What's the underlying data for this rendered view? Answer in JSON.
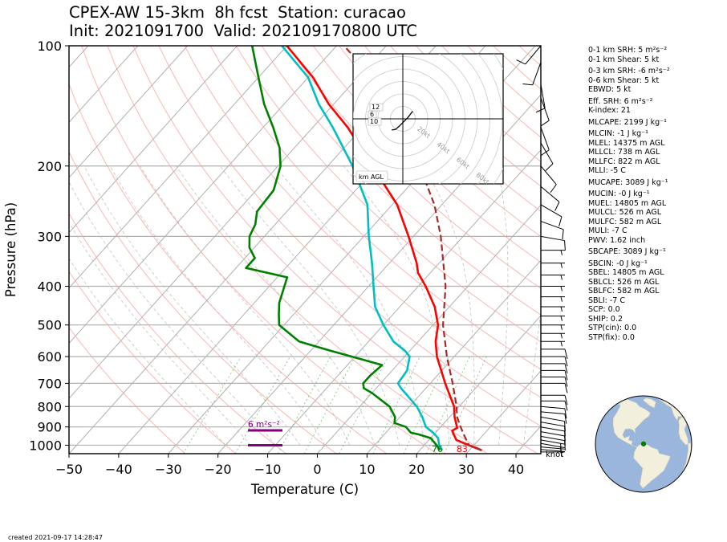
{
  "header": {
    "title_line1": "CPEX-AW 15-3km  8h fcst  Station: curacao",
    "title_line2": "Init: 2021091700  Valid: 202109170800 UTC"
  },
  "footer": {
    "created": "created 2021-09-17 14:28:47"
  },
  "stats": [
    "0-1 km SRH: 5 m²s⁻²",
    "0-1 km Shear: 5 kt",
    "0-3 km SRH: -6 m²s⁻²",
    "0-6 km Shear: 5 kt",
    "EBWD: 5 kt",
    "Eff. SRH: 6 m²s⁻²",
    "K-index: 21",
    "MLCAPE: 2199 J kg⁻¹",
    "MLCIN: -1 J kg⁻¹",
    "MLEL: 14375 m AGL",
    "MLLCL: 738 m AGL",
    "MLLFC: 822 m AGL",
    "MLLI: -5 C",
    "MUCAPE: 3089 J kg⁻¹",
    "MUCIN: -0 J kg⁻¹",
    "MUEL: 14805 m AGL",
    "MULCL: 526 m AGL",
    "MULFC: 582 m AGL",
    "MULI: -7 C",
    "PWV: 1.62 inch",
    "SBCAPE: 3089 J kg⁻¹",
    "SBCIN: -0 J kg⁻¹",
    "SBEL: 14805 m AGL",
    "SBLCL: 526 m AGL",
    "SBLFC: 582 m AGL",
    "SBLI: -7 C",
    "SCP: 0.0",
    "SHIP: 0.2",
    "STP(cin): 0.0",
    "STP(fix): 0.0"
  ],
  "stats_gap_before": [
    2,
    5,
    7,
    8,
    13,
    14,
    20,
    21
  ],
  "chart_data": {
    "type": "line",
    "xlabel": "Temperature (C)",
    "ylabel": "Pressure (hPa)",
    "xlim": [
      -50,
      45
    ],
    "ylim": [
      1050,
      100
    ],
    "xticks": [
      -50,
      -40,
      -30,
      -20,
      -10,
      0,
      10,
      20,
      30,
      40
    ],
    "yticks": [
      1000,
      900,
      800,
      700,
      600,
      500,
      400,
      300,
      200,
      100
    ],
    "y_scale": "log",
    "skew": "skew-T",
    "series": [
      {
        "color": "#ff0000",
        "points": [
          [
            1030,
            32.5
          ],
          [
            1000,
            29
          ],
          [
            970,
            25.5
          ],
          [
            940,
            24
          ],
          [
            920,
            23
          ],
          [
            905,
            23.5
          ],
          [
            850,
            21
          ],
          [
            800,
            19
          ],
          [
            700,
            13
          ],
          [
            600,
            6.5
          ],
          [
            550,
            3.5
          ],
          [
            500,
            1
          ],
          [
            450,
            -3
          ],
          [
            400,
            -8.5
          ],
          [
            370,
            -12.5
          ],
          [
            350,
            -14.5
          ],
          [
            300,
            -21
          ],
          [
            250,
            -29
          ],
          [
            200,
            -41
          ],
          [
            160,
            -53
          ],
          [
            140,
            -61
          ],
          [
            120,
            -69
          ],
          [
            100,
            -80
          ]
        ]
      },
      {
        "color": "#00bfc0",
        "points": [
          [
            1030,
            24.5
          ],
          [
            1000,
            23
          ],
          [
            960,
            21.5
          ],
          [
            930,
            19.5
          ],
          [
            900,
            17
          ],
          [
            850,
            14.5
          ],
          [
            800,
            11.5
          ],
          [
            720,
            5
          ],
          [
            700,
            3.5
          ],
          [
            650,
            3
          ],
          [
            600,
            1
          ],
          [
            580,
            -1
          ],
          [
            550,
            -5
          ],
          [
            500,
            -10
          ],
          [
            450,
            -15
          ],
          [
            400,
            -19
          ],
          [
            350,
            -23.5
          ],
          [
            300,
            -29
          ],
          [
            250,
            -35
          ],
          [
            200,
            -45
          ],
          [
            160,
            -56
          ],
          [
            140,
            -63
          ],
          [
            120,
            -70
          ],
          [
            100,
            -81
          ]
        ]
      },
      {
        "color": "#008000",
        "points": [
          [
            1030,
            24
          ],
          [
            1000,
            22.5
          ],
          [
            960,
            20
          ],
          [
            940,
            17
          ],
          [
            930,
            15
          ],
          [
            900,
            13
          ],
          [
            880,
            10
          ],
          [
            850,
            9
          ],
          [
            800,
            6
          ],
          [
            740,
            0
          ],
          [
            720,
            -2.5
          ],
          [
            700,
            -3.5
          ],
          [
            670,
            -3.5
          ],
          [
            630,
            -3
          ],
          [
            610,
            -8
          ],
          [
            580,
            -16
          ],
          [
            550,
            -24
          ],
          [
            500,
            -31
          ],
          [
            470,
            -33
          ],
          [
            440,
            -35
          ],
          [
            380,
            -38
          ],
          [
            360,
            -48
          ],
          [
            340,
            -48
          ],
          [
            320,
            -51
          ],
          [
            300,
            -53
          ],
          [
            280,
            -54
          ],
          [
            260,
            -56
          ],
          [
            230,
            -56.5
          ],
          [
            200,
            -59.5
          ],
          [
            180,
            -63
          ],
          [
            160,
            -68
          ],
          [
            140,
            -74
          ],
          [
            120,
            -80
          ],
          [
            100,
            -87
          ]
        ]
      },
      {
        "color": "#a52a2a",
        "dashed": true,
        "points": [
          [
            1030,
            32.5
          ],
          [
            1000,
            29
          ],
          [
            950,
            26.5
          ],
          [
            900,
            24
          ],
          [
            850,
            21.5
          ],
          [
            800,
            19.5
          ],
          [
            700,
            14.5
          ],
          [
            600,
            8.5
          ],
          [
            500,
            2
          ],
          [
            400,
            -4.5
          ],
          [
            300,
            -14.5
          ],
          [
            250,
            -21.5
          ],
          [
            200,
            -31.5
          ],
          [
            160,
            -42
          ],
          [
            140,
            -49
          ],
          [
            120,
            -57
          ],
          [
            100,
            -68.5
          ]
        ]
      }
    ],
    "surface_labels": [
      {
        "text": "76",
        "color": "#008000",
        "temp": 24
      },
      {
        "text": "83",
        "color": "#ff0000",
        "temp": 29
      }
    ],
    "srh_bars": [
      {
        "label": "6 m²s⁻²",
        "pressure": 918
      },
      {
        "label": "",
        "pressure": 1000
      }
    ],
    "barb_unit_label": "knot",
    "wind_barbs": [
      {
        "pressure": 1040,
        "spd": 5,
        "dir": 90
      },
      {
        "pressure": 1025,
        "spd": 5,
        "dir": 95
      },
      {
        "pressure": 1010,
        "spd": 5,
        "dir": 95
      },
      {
        "pressure": 990,
        "spd": 5,
        "dir": 100
      },
      {
        "pressure": 970,
        "spd": 5,
        "dir": 100
      },
      {
        "pressure": 950,
        "spd": 10,
        "dir": 100
      },
      {
        "pressure": 925,
        "spd": 10,
        "dir": 100
      },
      {
        "pressure": 900,
        "spd": 10,
        "dir": 100
      },
      {
        "pressure": 875,
        "spd": 10,
        "dir": 100
      },
      {
        "pressure": 850,
        "spd": 10,
        "dir": 100
      },
      {
        "pressure": 825,
        "spd": 10,
        "dir": 95
      },
      {
        "pressure": 800,
        "spd": 10,
        "dir": 95
      },
      {
        "pressure": 775,
        "spd": 10,
        "dir": 90
      },
      {
        "pressure": 750,
        "spd": 10,
        "dir": 90
      },
      {
        "pressure": 700,
        "spd": 10,
        "dir": 90
      },
      {
        "pressure": 675,
        "spd": 10,
        "dir": 90
      },
      {
        "pressure": 650,
        "spd": 10,
        "dir": 90
      },
      {
        "pressure": 625,
        "spd": 10,
        "dir": 90
      },
      {
        "pressure": 600,
        "spd": 10,
        "dir": 90
      },
      {
        "pressure": 575,
        "spd": 10,
        "dir": 90
      },
      {
        "pressure": 550,
        "spd": 5,
        "dir": 90
      },
      {
        "pressure": 525,
        "spd": 5,
        "dir": 90
      },
      {
        "pressure": 500,
        "spd": 5,
        "dir": 90
      },
      {
        "pressure": 475,
        "spd": 5,
        "dir": 90
      },
      {
        "pressure": 450,
        "spd": 5,
        "dir": 90
      },
      {
        "pressure": 425,
        "spd": 5,
        "dir": 90
      },
      {
        "pressure": 400,
        "spd": 5,
        "dir": 90
      },
      {
        "pressure": 375,
        "spd": 5,
        "dir": 90
      },
      {
        "pressure": 350,
        "spd": 5,
        "dir": 90
      },
      {
        "pressure": 325,
        "spd": 5,
        "dir": 90
      },
      {
        "pressure": 300,
        "spd": 10,
        "dir": 100
      },
      {
        "pressure": 275,
        "spd": 10,
        "dir": 110
      },
      {
        "pressure": 250,
        "spd": 10,
        "dir": 120
      },
      {
        "pressure": 225,
        "spd": 10,
        "dir": 130
      },
      {
        "pressure": 200,
        "spd": 10,
        "dir": 140
      },
      {
        "pressure": 175,
        "spd": 10,
        "dir": 150
      },
      {
        "pressure": 160,
        "spd": 10,
        "dir": 160
      },
      {
        "pressure": 135,
        "spd": 10,
        "dir": 160
      },
      {
        "pressure": 125,
        "spd": 10,
        "dir": 170
      },
      {
        "pressure": 110,
        "spd": 10,
        "dir": 200
      },
      {
        "pressure": 100,
        "spd": 10,
        "dir": 220
      }
    ],
    "hodograph": {
      "legend": "km AGL",
      "ring_labels": [
        "20kt",
        "40kt",
        "60kt",
        "80kt"
      ],
      "height_labels": [
        "12",
        "6",
        "10"
      ],
      "trace_kt": [
        [
          -9,
          -9
        ],
        [
          -6,
          -8.5
        ],
        [
          -3,
          -6
        ],
        [
          0,
          -3
        ],
        [
          4,
          1
        ],
        [
          7,
          5
        ],
        [
          8,
          6
        ]
      ]
    },
    "globe": {
      "station_lat": 12.2,
      "station_lon": -69.0
    }
  }
}
